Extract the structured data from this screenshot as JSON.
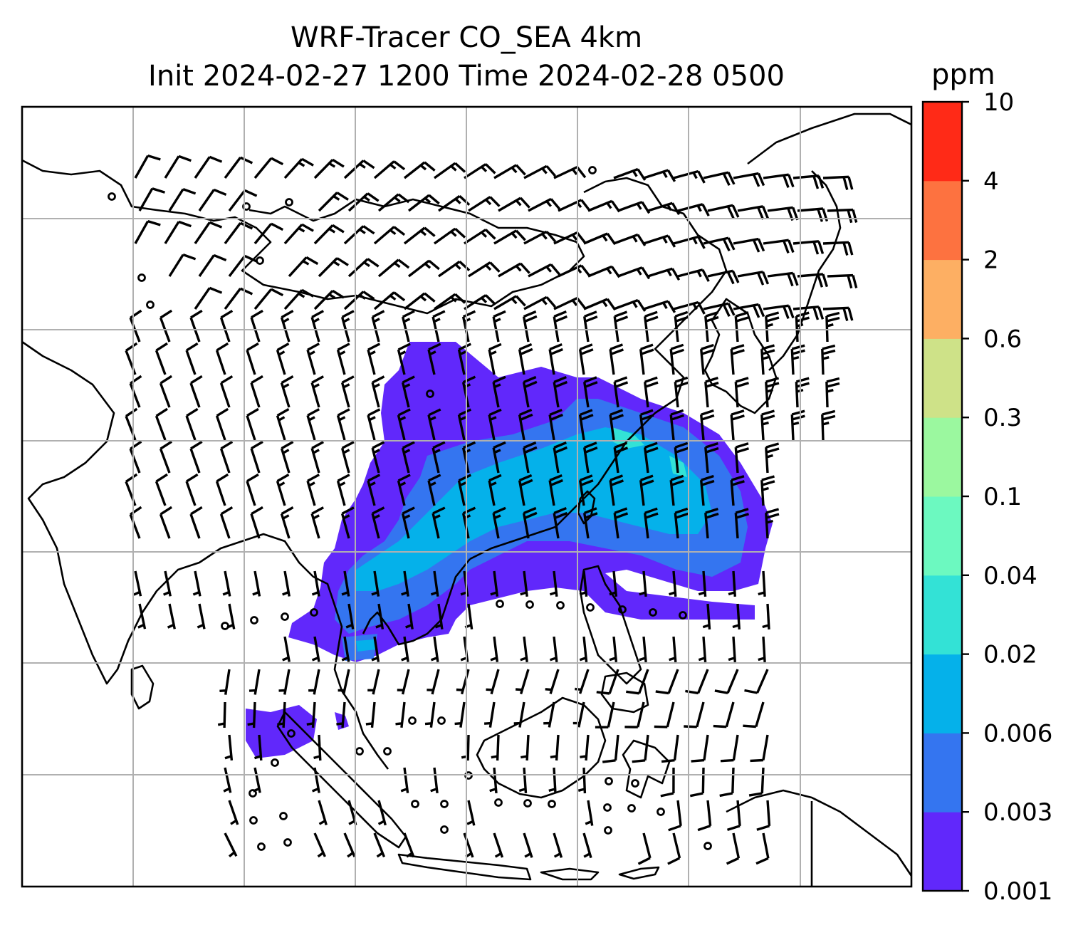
{
  "title_line1": "WRF-Tracer CO_SEA 4km",
  "title_line2": "Init 2024-02-27 1200 Time 2024-02-28 0500",
  "colorbar": {
    "unit": "ppm",
    "levels": [
      "0.001",
      "0.003",
      "0.006",
      "0.02",
      "0.04",
      "0.1",
      "0.3",
      "0.6",
      "2",
      "4",
      "10"
    ],
    "colors": [
      "#6128fb",
      "#3475f0",
      "#05b1ea",
      "#33e2d6",
      "#6cf9c0",
      "#9bf89f",
      "#cee288",
      "#fdaf63",
      "#fd7240",
      "#ff2a17"
    ]
  },
  "map": {
    "region": "Southeast Asia / East Asia",
    "gridlines": true,
    "plume_colors": {
      "level1": "#6128fb",
      "level2": "#3475f0",
      "level3": "#05b1ea",
      "level4": "#33e2d6"
    },
    "overlay": "wind barbs"
  }
}
